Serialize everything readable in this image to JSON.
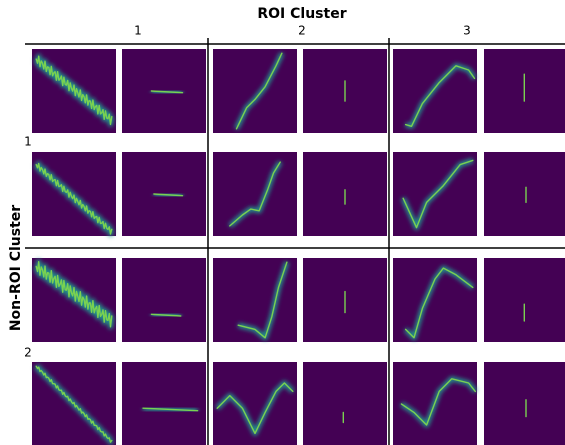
{
  "title": "ROI Cluster",
  "columns": [
    "1",
    "2",
    "3"
  ],
  "row_axis_label": "Non-ROI Cluster",
  "rows": [
    "1",
    "2"
  ]
}
